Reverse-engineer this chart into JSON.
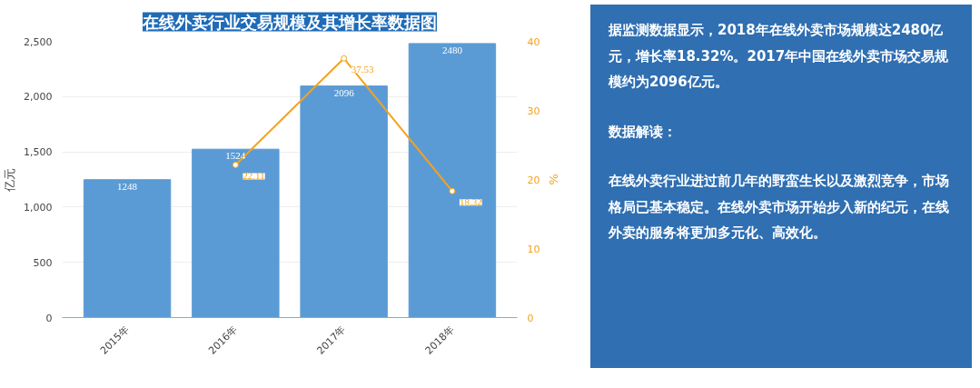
{
  "chart_data": {
    "type": "bar",
    "title": "在线外卖行业交易规模及其增长率数据图",
    "ylabel": "亿元",
    "y2label": "%",
    "categories": [
      "2015年",
      "2016年",
      "2017年",
      "2018年"
    ],
    "series": [
      {
        "color": "#5b9bd5",
        "values": [
          1248,
          1524,
          2096,
          2480
        ]
      },
      {
        "type": "line",
        "axis": "y2",
        "color": "#f5a21b",
        "values": [
          null,
          22.11,
          37.53,
          18.32
        ],
        "marker": "circle"
      }
    ],
    "ylim": [
      0,
      2500
    ],
    "yticks": [
      0,
      {
        "value": 500,
        "label": "500"
      },
      {
        "value": 1000,
        "label": "1,000"
      },
      {
        "value": 1500,
        "label": "1,500"
      },
      {
        "value": 2000,
        "label": "2,000"
      },
      {
        "value": 2500,
        "label": "2,500"
      }
    ],
    "y2lim": [
      0,
      40
    ],
    "y2ticks": [
      0,
      10,
      20,
      30,
      40
    ],
    "grid": "y",
    "data_labels": true,
    "annotations": [
      "据监测数据显示，2018年在线外卖市场规模达2480亿元，增长率18.32%。2017年中国在线外卖市场交易规模约为2096亿元。",
      "数据解读：",
      "在线外卖行业进过前几年的野蛮生长以及激烈竞争，市场格局已基本稳定。在线外卖市场开始步入新的纪元，在线外卖的服务将更加多元化、高效化。"
    ]
  }
}
